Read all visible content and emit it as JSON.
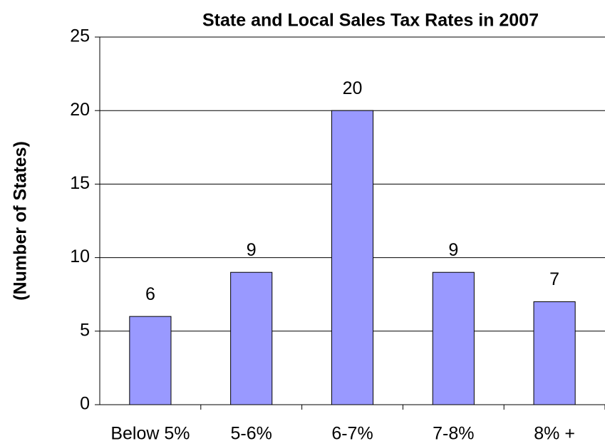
{
  "chart_data": {
    "type": "bar",
    "title": "State and Local Sales Tax Rates in 2007",
    "y_label": "(Number of States)",
    "categories": [
      "Below 5%",
      "5-6%",
      "6-7%",
      "7-8%",
      "8% +"
    ],
    "values": [
      6,
      9,
      20,
      9,
      7
    ],
    "color": "#9999ff",
    "ylim": [
      0,
      25
    ],
    "yticks": [
      0,
      5,
      10,
      15,
      20,
      25
    ],
    "grid": true
  }
}
